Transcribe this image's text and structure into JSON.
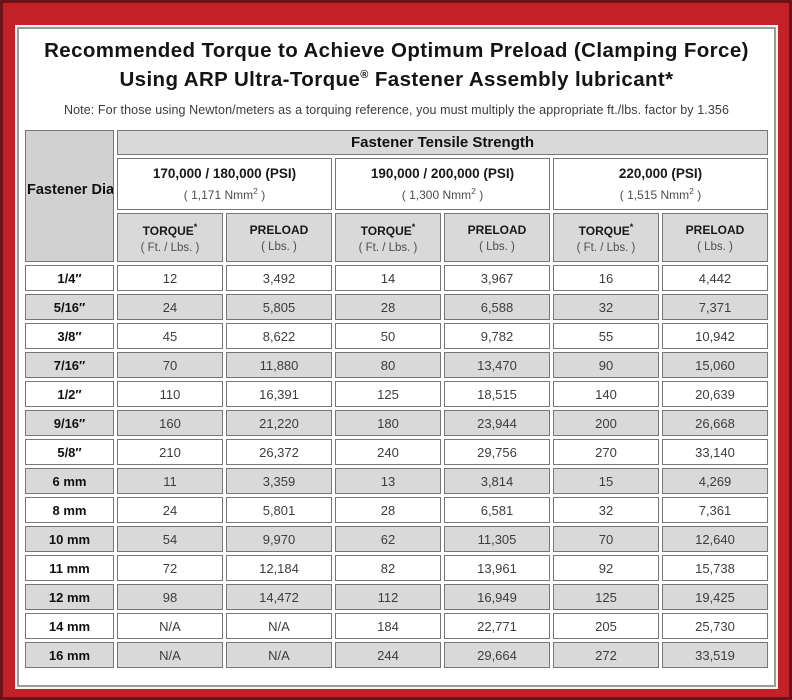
{
  "colors": {
    "frame_red": "#c32127",
    "frame_dark_red": "#6d1216",
    "row_gray": "#d9d9d9",
    "cell_border": "#777777"
  },
  "title": {
    "line1": "Recommended Torque to Achieve Optimum Preload (Clamping Force)",
    "line2_pre": "Using ARP Ultra-Torque",
    "line2_mark": "®",
    "line2_post": " Fastener Assembly lubricant*",
    "note": "Note: For those using Newton/meters as a torquing reference, you must multiply the appropriate ft./lbs. factor by 1.356"
  },
  "table": {
    "corner_header": "Fastener Diameter",
    "group_header": "Fastener Tensile Strength",
    "strength_groups": [
      {
        "psi": "170,000 / 180,000 (PSI)",
        "metric_value": "( 1,171 Nmm",
        "metric_sup": "2",
        "metric_close": " )"
      },
      {
        "psi": "190,000 / 200,000 (PSI)",
        "metric_value": "( 1,300 Nmm",
        "metric_sup": "2",
        "metric_close": " )"
      },
      {
        "psi": "220,000 (PSI)",
        "metric_value": "( 1,515 Nmm",
        "metric_sup": "2",
        "metric_close": " )"
      }
    ],
    "col_headers": {
      "torque_label": "TORQUE",
      "torque_mark": "*",
      "torque_unit": "( Ft. / Lbs. )",
      "preload_label": "PRELOAD",
      "preload_unit": "( Lbs. )"
    },
    "rows": [
      {
        "diameter": "1/4″",
        "values": [
          "12",
          "3,492",
          "14",
          "3,967",
          "16",
          "4,442"
        ]
      },
      {
        "diameter": "5/16″",
        "values": [
          "24",
          "5,805",
          "28",
          "6,588",
          "32",
          "7,371"
        ]
      },
      {
        "diameter": "3/8″",
        "values": [
          "45",
          "8,622",
          "50",
          "9,782",
          "55",
          "10,942"
        ]
      },
      {
        "diameter": "7/16″",
        "values": [
          "70",
          "11,880",
          "80",
          "13,470",
          "90",
          "15,060"
        ]
      },
      {
        "diameter": "1/2″",
        "values": [
          "110",
          "16,391",
          "125",
          "18,515",
          "140",
          "20,639"
        ]
      },
      {
        "diameter": "9/16″",
        "values": [
          "160",
          "21,220",
          "180",
          "23,944",
          "200",
          "26,668"
        ]
      },
      {
        "diameter": "5/8″",
        "values": [
          "210",
          "26,372",
          "240",
          "29,756",
          "270",
          "33,140"
        ]
      },
      {
        "diameter": "6 mm",
        "values": [
          "11",
          "3,359",
          "13",
          "3,814",
          "15",
          "4,269"
        ]
      },
      {
        "diameter": "8 mm",
        "values": [
          "24",
          "5,801",
          "28",
          "6,581",
          "32",
          "7,361"
        ]
      },
      {
        "diameter": "10 mm",
        "values": [
          "54",
          "9,970",
          "62",
          "11,305",
          "70",
          "12,640"
        ]
      },
      {
        "diameter": "11 mm",
        "values": [
          "72",
          "12,184",
          "82",
          "13,961",
          "92",
          "15,738"
        ]
      },
      {
        "diameter": "12 mm",
        "values": [
          "98",
          "14,472",
          "112",
          "16,949",
          "125",
          "19,425"
        ]
      },
      {
        "diameter": "14 mm",
        "values": [
          "N/A",
          "N/A",
          "184",
          "22,771",
          "205",
          "25,730"
        ]
      },
      {
        "diameter": "16 mm",
        "values": [
          "N/A",
          "N/A",
          "244",
          "29,664",
          "272",
          "33,519"
        ]
      }
    ]
  }
}
